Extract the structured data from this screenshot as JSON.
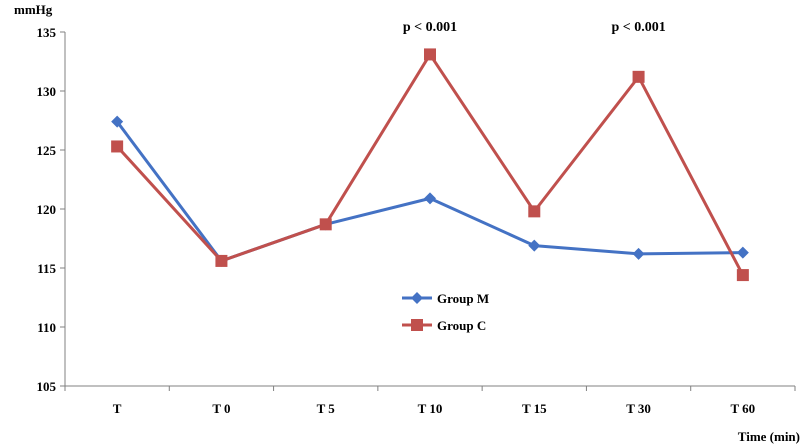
{
  "chart_data": {
    "type": "line",
    "title": "",
    "ylabel": "mmHg",
    "xlabel": "Time (min)",
    "categories": [
      "T",
      "T 0",
      "T 5",
      "T 10",
      "T 15",
      "T 30",
      "T 60"
    ],
    "ylim": [
      105,
      135
    ],
    "yticks": [
      105,
      110,
      115,
      120,
      125,
      130,
      135
    ],
    "grid": false,
    "legend_position": "center-bottom",
    "series": [
      {
        "name": "Group M",
        "color": "#4472c4",
        "marker": "diamond",
        "values": [
          127.4,
          115.6,
          118.7,
          120.9,
          116.9,
          116.2,
          116.3
        ]
      },
      {
        "name": "Group C",
        "color": "#c0504d",
        "marker": "square",
        "values": [
          125.3,
          115.6,
          118.7,
          133.1,
          119.8,
          131.2,
          114.4
        ]
      }
    ],
    "annotations": [
      {
        "category": "T 10",
        "text": "p < 0.001"
      },
      {
        "category": "T 30",
        "text": "p < 0.001"
      }
    ]
  }
}
